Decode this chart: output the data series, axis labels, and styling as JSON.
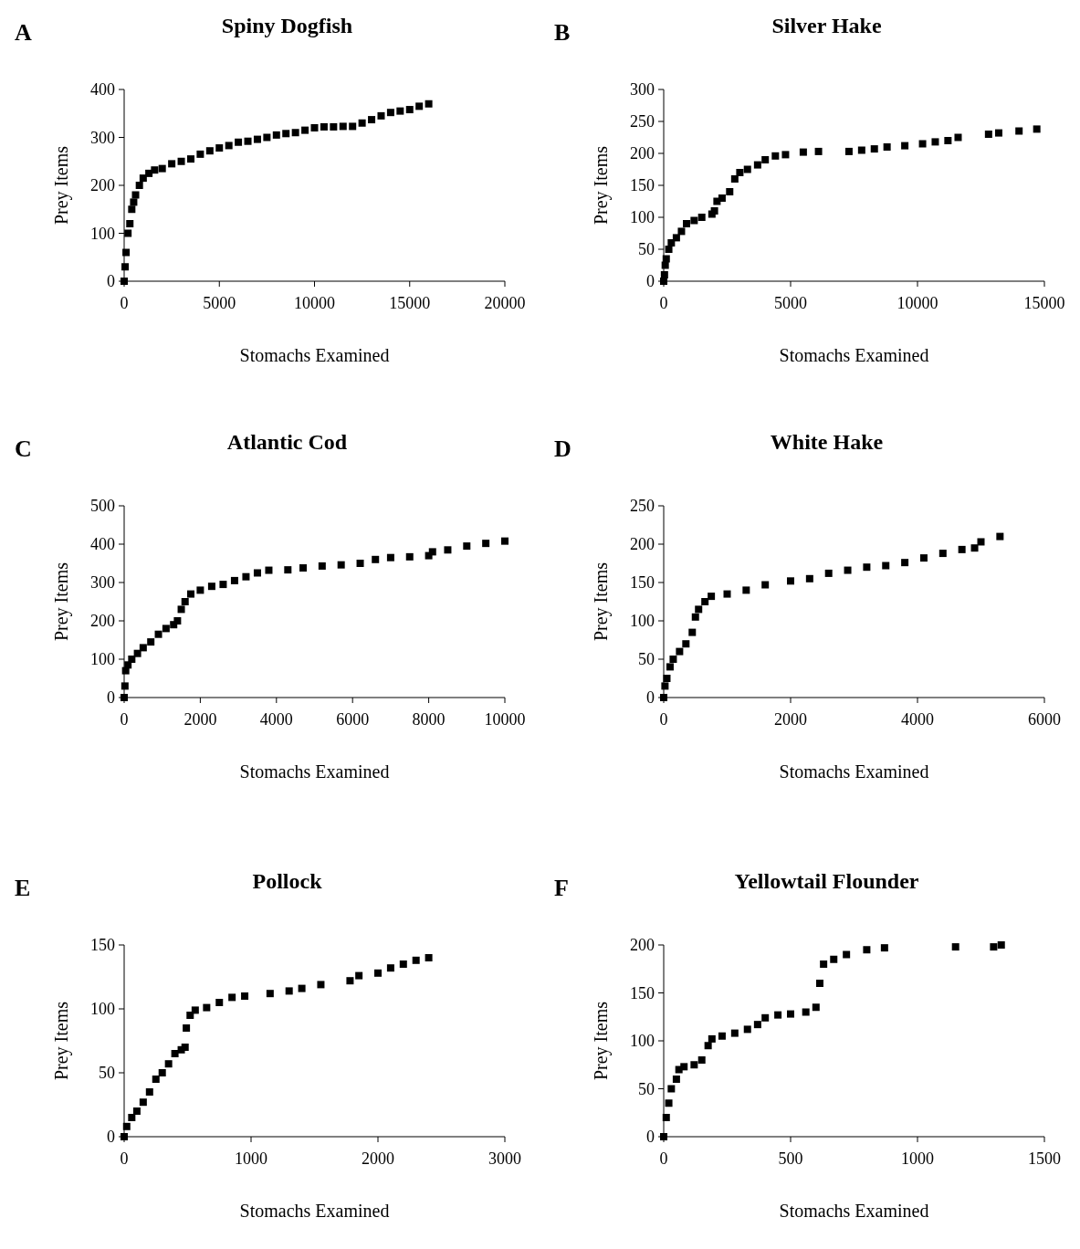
{
  "chart_data": [
    {
      "type": "scatter",
      "title": "Spiny Dogfish",
      "xlabel": "Stomachs Examined",
      "ylabel": "Prey Items",
      "annotations": [
        "A"
      ],
      "marker": "square",
      "xlim": [
        0,
        20000
      ],
      "ylim": [
        0,
        400
      ],
      "xticks": [
        0,
        5000,
        10000,
        15000,
        20000
      ],
      "yticks": [
        0,
        100,
        200,
        300,
        400
      ],
      "series": [
        {
          "color": "#000000",
          "x": [
            0,
            50,
            100,
            200,
            300,
            400,
            500,
            600,
            800,
            1000,
            1300,
            1600,
            2000,
            2500,
            3000,
            3500,
            4000,
            4500,
            5000,
            5500,
            6000,
            6500,
            7000,
            7500,
            8000,
            8500,
            9000,
            9500,
            10000,
            10500,
            11000,
            11500,
            12000,
            12500,
            13000,
            13500,
            14000,
            14500,
            15000,
            15500,
            16000
          ],
          "values": [
            0,
            30,
            60,
            100,
            120,
            150,
            165,
            180,
            200,
            215,
            225,
            232,
            235,
            245,
            250,
            255,
            265,
            272,
            278,
            283,
            290,
            292,
            296,
            300,
            305,
            308,
            310,
            315,
            320,
            322,
            322,
            323,
            323,
            330,
            337,
            345,
            352,
            355,
            358,
            365,
            370
          ]
        }
      ]
    },
    {
      "type": "scatter",
      "title": "Silver Hake",
      "xlabel": "Stomachs Examined",
      "ylabel": "Prey Items",
      "annotations": [
        "B"
      ],
      "marker": "square",
      "xlim": [
        0,
        15000
      ],
      "ylim": [
        0,
        300
      ],
      "xticks": [
        0,
        5000,
        10000,
        15000
      ],
      "yticks": [
        0,
        50,
        100,
        150,
        200,
        250,
        300
      ],
      "series": [
        {
          "color": "#000000",
          "x": [
            0,
            30,
            60,
            100,
            200,
            300,
            500,
            700,
            900,
            1200,
            1500,
            1900,
            2000,
            2100,
            2300,
            2600,
            2800,
            3000,
            3300,
            3700,
            4000,
            4400,
            4800,
            5500,
            6100,
            7300,
            7800,
            8300,
            8800,
            9500,
            10200,
            10700,
            11200,
            11600,
            12800,
            13200,
            14000,
            14700
          ],
          "values": [
            0,
            10,
            25,
            35,
            50,
            60,
            68,
            78,
            90,
            95,
            100,
            105,
            110,
            125,
            130,
            140,
            160,
            170,
            175,
            182,
            190,
            196,
            198,
            202,
            203,
            203,
            205,
            207,
            210,
            212,
            215,
            218,
            220,
            225,
            230,
            232,
            235,
            238
          ]
        }
      ]
    },
    {
      "type": "scatter",
      "title": "Atlantic Cod",
      "xlabel": "Stomachs Examined",
      "ylabel": "Prey Items",
      "annotations": [
        "C"
      ],
      "marker": "square",
      "xlim": [
        0,
        10000
      ],
      "ylim": [
        0,
        500
      ],
      "xticks": [
        0,
        2000,
        4000,
        6000,
        8000,
        10000
      ],
      "yticks": [
        0,
        100,
        200,
        300,
        400,
        500
      ],
      "series": [
        {
          "color": "#000000",
          "x": [
            0,
            20,
            40,
            100,
            200,
            350,
            500,
            700,
            900,
            1100,
            1300,
            1400,
            1500,
            1600,
            1750,
            2000,
            2300,
            2600,
            2900,
            3200,
            3500,
            3800,
            4300,
            4700,
            5200,
            5700,
            6200,
            6600,
            7000,
            7500,
            8000,
            8100,
            8500,
            9000,
            9500,
            10000
          ],
          "values": [
            0,
            30,
            70,
            85,
            100,
            115,
            130,
            145,
            165,
            180,
            190,
            200,
            230,
            250,
            270,
            280,
            290,
            295,
            305,
            315,
            325,
            332,
            333,
            338,
            343,
            346,
            350,
            360,
            365,
            367,
            370,
            380,
            385,
            395,
            402,
            408
          ]
        }
      ]
    },
    {
      "type": "scatter",
      "title": "White Hake",
      "xlabel": "Stomachs Examined",
      "ylabel": "Prey Items",
      "annotations": [
        "D"
      ],
      "marker": "square",
      "xlim": [
        0,
        6000
      ],
      "ylim": [
        0,
        250
      ],
      "xticks": [
        0,
        2000,
        4000,
        6000
      ],
      "yticks": [
        0,
        50,
        100,
        150,
        200,
        250
      ],
      "series": [
        {
          "color": "#000000",
          "x": [
            0,
            20,
            50,
            100,
            150,
            250,
            350,
            450,
            500,
            550,
            650,
            750,
            1000,
            1300,
            1600,
            2000,
            2300,
            2600,
            2900,
            3200,
            3500,
            3800,
            4100,
            4400,
            4700,
            4900,
            5000,
            5300
          ],
          "values": [
            0,
            15,
            25,
            40,
            50,
            60,
            70,
            85,
            105,
            115,
            125,
            132,
            135,
            140,
            147,
            152,
            155,
            162,
            166,
            170,
            172,
            176,
            182,
            188,
            193,
            195,
            203,
            210
          ]
        }
      ]
    },
    {
      "type": "scatter",
      "title": "Pollock",
      "xlabel": "Stomachs Examined",
      "ylabel": "Prey Items",
      "annotations": [
        "E"
      ],
      "marker": "square",
      "xlim": [
        0,
        3000
      ],
      "ylim": [
        0,
        150
      ],
      "xticks": [
        0,
        1000,
        2000,
        3000
      ],
      "yticks": [
        0,
        50,
        100,
        150
      ],
      "series": [
        {
          "color": "#000000",
          "x": [
            0,
            20,
            60,
            100,
            150,
            200,
            250,
            300,
            350,
            400,
            450,
            480,
            490,
            520,
            560,
            650,
            750,
            850,
            950,
            1150,
            1300,
            1400,
            1550,
            1780,
            1850,
            2000,
            2100,
            2200,
            2300,
            2400
          ],
          "values": [
            0,
            8,
            15,
            20,
            27,
            35,
            45,
            50,
            57,
            65,
            68,
            70,
            85,
            95,
            99,
            101,
            105,
            109,
            110,
            112,
            114,
            116,
            119,
            122,
            126,
            128,
            132,
            135,
            138,
            140
          ]
        }
      ]
    },
    {
      "type": "scatter",
      "title": "Yellowtail Flounder",
      "xlabel": "Stomachs Examined",
      "ylabel": "Prey Items",
      "annotations": [
        "F"
      ],
      "marker": "square",
      "xlim": [
        0,
        1500
      ],
      "ylim": [
        0,
        200
      ],
      "xticks": [
        0,
        500,
        1000,
        1500
      ],
      "yticks": [
        0,
        50,
        100,
        150,
        200
      ],
      "series": [
        {
          "color": "#000000",
          "x": [
            0,
            10,
            20,
            30,
            50,
            60,
            80,
            120,
            150,
            175,
            190,
            230,
            280,
            330,
            370,
            400,
            450,
            500,
            560,
            600,
            615,
            630,
            670,
            720,
            800,
            870,
            1150,
            1300,
            1330
          ],
          "values": [
            0,
            20,
            35,
            50,
            60,
            70,
            73,
            75,
            80,
            95,
            102,
            105,
            108,
            112,
            117,
            124,
            127,
            128,
            130,
            135,
            160,
            180,
            185,
            190,
            195,
            197,
            198,
            198,
            200
          ]
        }
      ]
    }
  ]
}
